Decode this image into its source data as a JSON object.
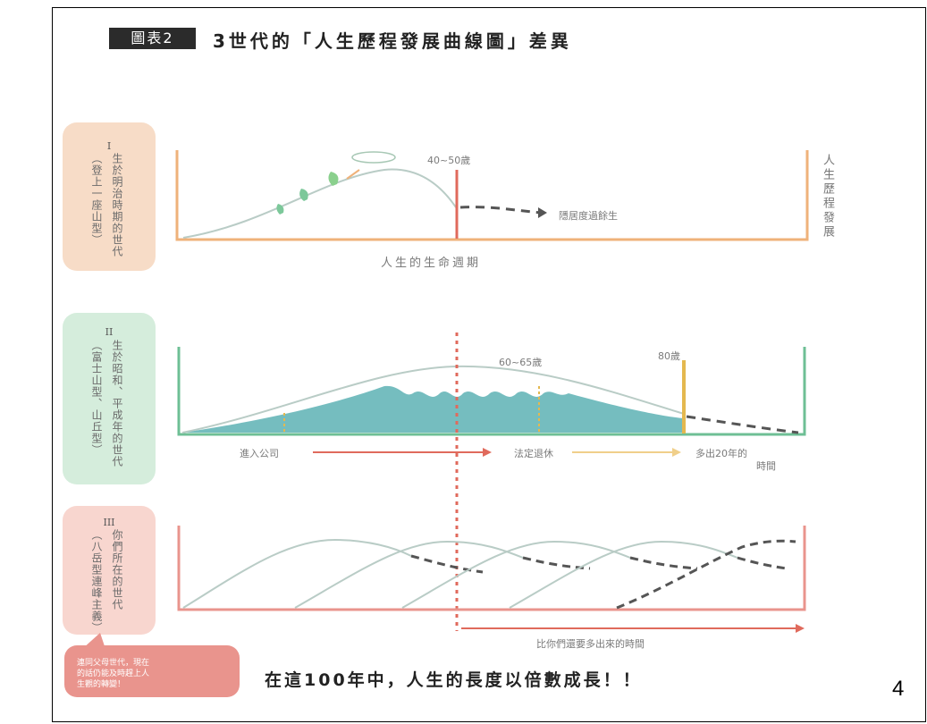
{
  "title": {
    "badge": "圖表2",
    "text": "3世代的「人生歷程發展曲線圖」差異"
  },
  "panel1": {
    "roman": "I",
    "main_label": "生於明治時期的世代",
    "sub_label": "（登上一座山型）",
    "age_label": "40~50歲",
    "decline_label": "隱居度過餘生",
    "axis_label": "人生的生命週期",
    "right_axis": "人生歷程發展"
  },
  "panel2": {
    "roman": "II",
    "main_label": "生於昭和、平成年的世代",
    "sub_label": "（富士山型、山丘型）",
    "peak_label": "60~65歲",
    "age80_label": "80歲",
    "arrow1_label": "進入公司",
    "arrow2_label": "法定退休",
    "extra_label_line1": "多出20年的",
    "extra_label_line2": "時間"
  },
  "panel3": {
    "roman": "III",
    "main_label": "你們所在的世代",
    "sub_label": "（八岳型連峰主義）",
    "bottom_arrow_label": "比你們還要多出來的時間"
  },
  "callout": {
    "line1": "連同父母世代，現在",
    "line2": "的話仍能及時趕上人",
    "line3": "生觀的轉變！"
  },
  "slogan": "在這100年中，人生的長度以倍數成長！！",
  "page_number": "4",
  "colors": {
    "orange": "#efb27a",
    "red": "#e06a5c",
    "green": "#6ebf95",
    "teal": "#66b6b8",
    "salmon": "#e9948d",
    "curve": "#b9ccc6",
    "gold": "#e4b84f"
  }
}
